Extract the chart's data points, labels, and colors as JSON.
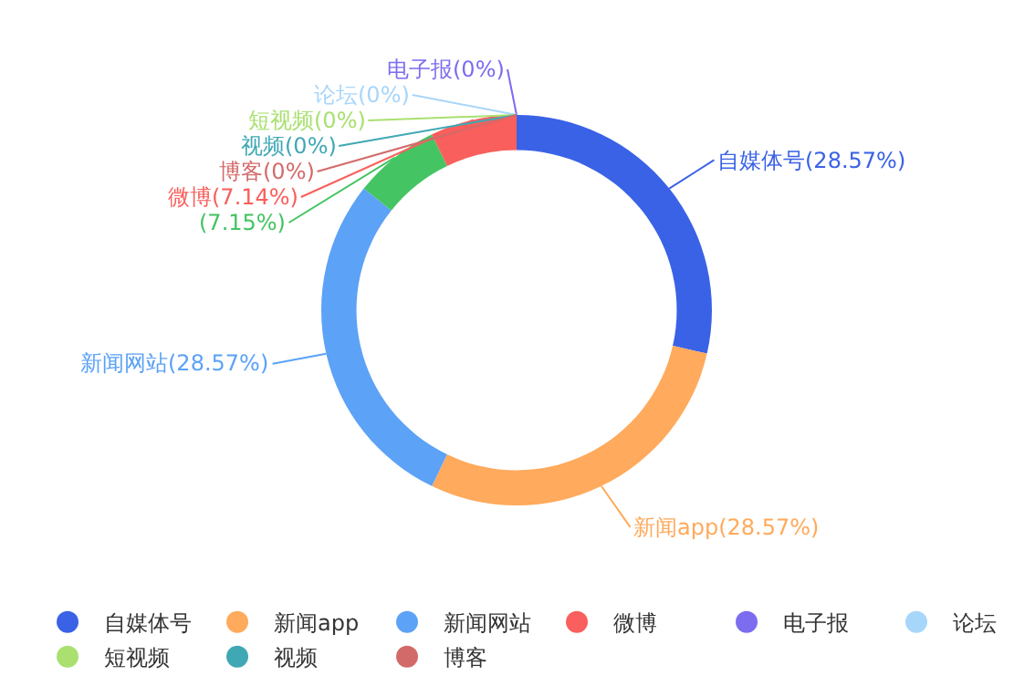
{
  "chart_data": {
    "type": "donut",
    "categories": [
      "自媒体号",
      "新闻app",
      "新闻网站",
      null,
      "微博",
      "电子报",
      "论坛",
      "短视频",
      "视频",
      "博客"
    ],
    "values": [
      28.57,
      28.57,
      28.57,
      7.15,
      7.14,
      0,
      0,
      0,
      0,
      0
    ],
    "value_labels": [
      "(28.57%)",
      "(28.57%)",
      "(28.57%)",
      "(7.15%)",
      "(7.14%)",
      "(0%)",
      "(0%)",
      "(0%)",
      "(0%)",
      "(0%)"
    ],
    "colors": [
      "#3a62e6",
      "#ffaa5c",
      "#5ca2f6",
      "#44c463",
      "#f95f5c",
      "#7c6cf0",
      "#a7d6fb",
      "#a9e070",
      "#3fa8b4",
      "#d36a6a"
    ],
    "legend": "bottom"
  }
}
